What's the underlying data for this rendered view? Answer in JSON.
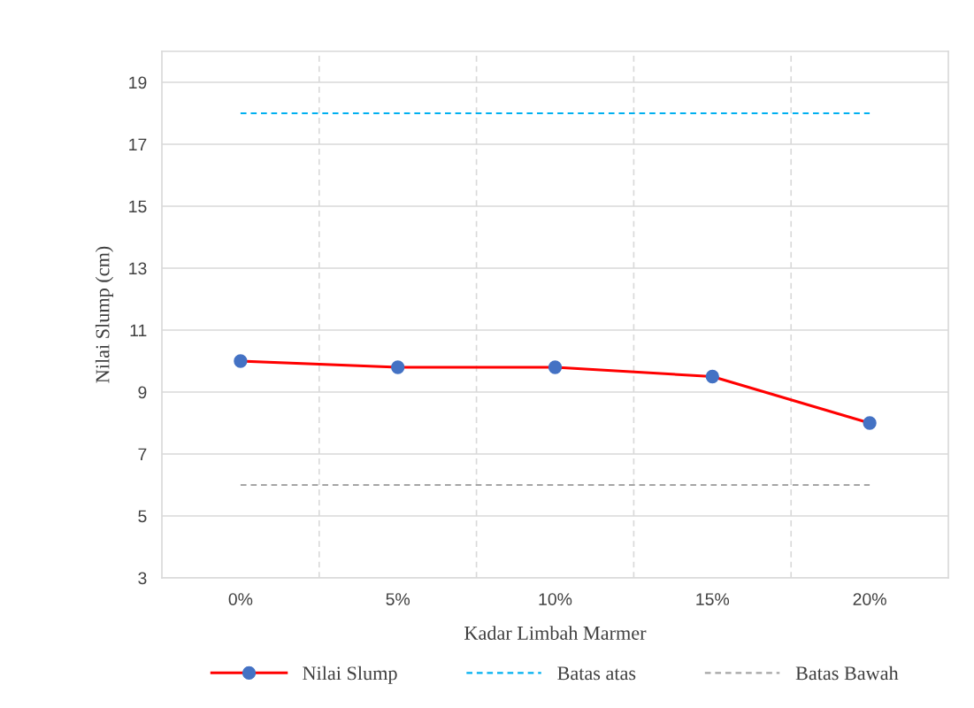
{
  "chart_data": {
    "type": "line",
    "xlabel": "Kadar Limbah Marmer",
    "ylabel": "Nilai Slump (cm)",
    "categories": [
      "0%",
      "5%",
      "10%",
      "15%",
      "20%"
    ],
    "series": [
      {
        "name": "Nilai Slump",
        "color": "#ff0000",
        "values": [
          10,
          9.8,
          9.8,
          9.5,
          8
        ],
        "marker": "circle",
        "colors": [
          "#4472c4",
          "#4472c4",
          "#4472c4",
          "#4472c4",
          "#4472c4"
        ],
        "line_style": "solid"
      },
      {
        "name": "Batas atas",
        "color": "#00b0f0",
        "values": [
          18,
          18,
          18,
          18,
          18
        ],
        "marker": "none",
        "line_style": "dashed"
      },
      {
        "name": "Batas Bawah",
        "color": "#a5a5a5",
        "values": [
          6,
          6,
          6,
          6,
          6
        ],
        "marker": "none",
        "line_style": "dashed"
      }
    ],
    "ylim": [
      3,
      20
    ],
    "yticks": [
      3,
      5,
      7,
      9,
      11,
      13,
      15,
      17,
      19
    ],
    "grid": true,
    "legend": "bottom"
  }
}
